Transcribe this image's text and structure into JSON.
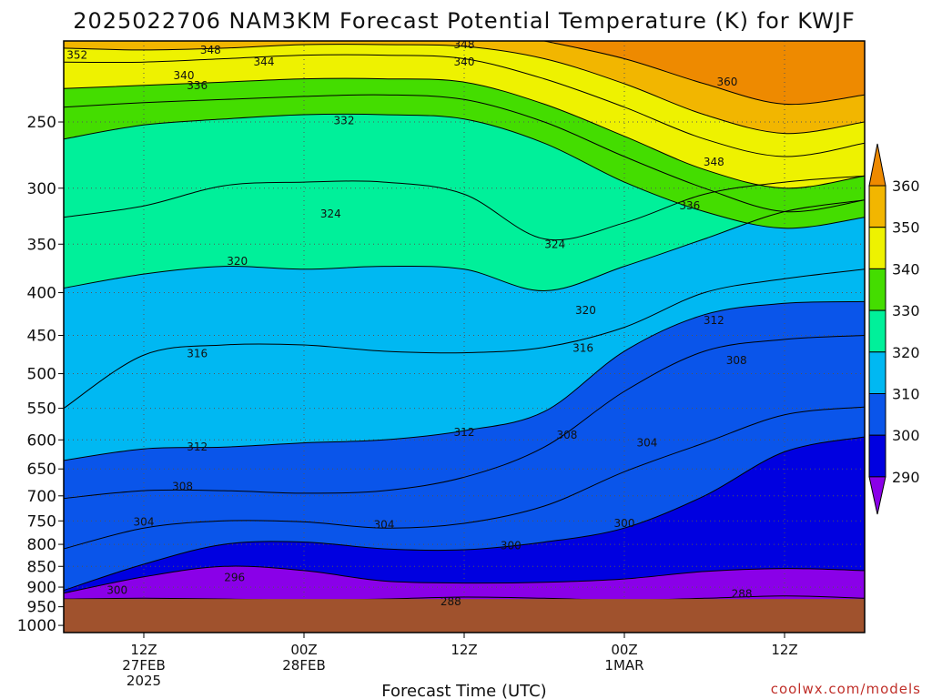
{
  "chart_data": {
    "type": "heatmap",
    "title": "2025022706 NAM3KM Forecast Potential Temperature (K) for KWJF",
    "xlabel": "Forecast Time (UTC)",
    "ylabel": "",
    "credit": "coolwx.com/models",
    "x_ticks": [
      {
        "hour": 6,
        "line1": "12Z",
        "line2": "27FEB",
        "line3": "2025"
      },
      {
        "hour": 18,
        "line1": "00Z",
        "line2": "28FEB",
        "line3": ""
      },
      {
        "hour": 30,
        "line1": "12Z",
        "line2": "",
        "line3": ""
      },
      {
        "hour": 42,
        "line1": "00Z",
        "line2": "1MAR",
        "line3": ""
      },
      {
        "hour": 54,
        "line1": "12Z",
        "line2": "",
        "line3": ""
      }
    ],
    "x_range_hours": [
      0,
      60
    ],
    "y_ticks": [
      "250",
      "300",
      "350",
      "400",
      "450",
      "500",
      "550",
      "600",
      "650",
      "700",
      "750",
      "800",
      "850",
      "900",
      "950",
      "1000"
    ],
    "y_range_hpa": [
      200,
      1020
    ],
    "y_scale": "log-pressure",
    "surface_pressure_hpa": 930,
    "colorbar": {
      "ticks": [
        "360",
        "350",
        "340",
        "330",
        "320",
        "310",
        "300",
        "290"
      ],
      "bins": [
        {
          "range": [
            360,
            370
          ],
          "color": "#ee8a00"
        },
        {
          "range": [
            350,
            360
          ],
          "color": "#f2b600"
        },
        {
          "range": [
            340,
            350
          ],
          "color": "#eef200"
        },
        {
          "range": [
            330,
            340
          ],
          "color": "#44dd00"
        },
        {
          "range": [
            320,
            330
          ],
          "color": "#00f09a"
        },
        {
          "range": [
            310,
            320
          ],
          "color": "#00b8f2"
        },
        {
          "range": [
            300,
            310
          ],
          "color": "#0a55ea"
        },
        {
          "range": [
            290,
            300
          ],
          "color": "#0000e0"
        },
        {
          "range": [
            280,
            290
          ],
          "color": "#8a00e8"
        }
      ]
    },
    "contour_interval_k": 2,
    "ground_color": "#a0522d",
    "isentropes": [
      {
        "theta": 288,
        "points": [
          [
            0,
            930
          ],
          [
            6,
            928
          ],
          [
            12,
            930
          ],
          [
            18,
            933
          ],
          [
            24,
            930
          ],
          [
            30,
            925
          ],
          [
            36,
            928
          ],
          [
            42,
            933
          ],
          [
            48,
            928
          ],
          [
            54,
            922
          ],
          [
            60,
            928
          ]
        ]
      },
      {
        "theta": 296,
        "points": [
          [
            0,
            915
          ],
          [
            6,
            875
          ],
          [
            12,
            850
          ],
          [
            18,
            860
          ],
          [
            24,
            885
          ],
          [
            30,
            890
          ],
          [
            36,
            888
          ],
          [
            42,
            880
          ],
          [
            48,
            862
          ],
          [
            54,
            855
          ],
          [
            60,
            860
          ]
        ]
      },
      {
        "theta": 300,
        "points": [
          [
            0,
            908
          ],
          [
            6,
            845
          ],
          [
            12,
            800
          ],
          [
            18,
            795
          ],
          [
            24,
            810
          ],
          [
            30,
            812
          ],
          [
            36,
            795
          ],
          [
            42,
            765
          ],
          [
            48,
            700
          ],
          [
            54,
            620
          ],
          [
            60,
            595
          ]
        ]
      },
      {
        "theta": 304,
        "points": [
          [
            0,
            810
          ],
          [
            6,
            765
          ],
          [
            12,
            750
          ],
          [
            18,
            752
          ],
          [
            24,
            765
          ],
          [
            30,
            755
          ],
          [
            36,
            720
          ],
          [
            42,
            655
          ],
          [
            48,
            605
          ],
          [
            54,
            560
          ],
          [
            60,
            548
          ]
        ]
      },
      {
        "theta": 308,
        "points": [
          [
            0,
            705
          ],
          [
            6,
            690
          ],
          [
            12,
            690
          ],
          [
            18,
            695
          ],
          [
            24,
            690
          ],
          [
            30,
            665
          ],
          [
            36,
            612
          ],
          [
            42,
            525
          ],
          [
            48,
            470
          ],
          [
            54,
            455
          ],
          [
            60,
            450
          ]
        ]
      },
      {
        "theta": 312,
        "points": [
          [
            0,
            635
          ],
          [
            6,
            615
          ],
          [
            12,
            612
          ],
          [
            18,
            605
          ],
          [
            24,
            600
          ],
          [
            30,
            585
          ],
          [
            36,
            555
          ],
          [
            42,
            470
          ],
          [
            48,
            425
          ],
          [
            54,
            412
          ],
          [
            60,
            410
          ]
        ]
      },
      {
        "theta": 316,
        "points": [
          [
            0,
            550
          ],
          [
            6,
            475
          ],
          [
            12,
            462
          ],
          [
            18,
            462
          ],
          [
            24,
            470
          ],
          [
            30,
            472
          ],
          [
            36,
            465
          ],
          [
            42,
            440
          ],
          [
            48,
            400
          ],
          [
            54,
            385
          ],
          [
            60,
            375
          ]
        ]
      },
      {
        "theta": 320,
        "points": [
          [
            0,
            395
          ],
          [
            6,
            380
          ],
          [
            12,
            372
          ],
          [
            18,
            375
          ],
          [
            24,
            372
          ],
          [
            30,
            375
          ],
          [
            36,
            398
          ],
          [
            42,
            372
          ],
          [
            48,
            345
          ],
          [
            54,
            320
          ],
          [
            60,
            310
          ]
        ]
      },
      {
        "theta": 324,
        "points": [
          [
            0,
            325
          ],
          [
            6,
            315
          ],
          [
            12,
            298
          ],
          [
            18,
            295
          ],
          [
            24,
            295
          ],
          [
            30,
            305
          ],
          [
            36,
            345
          ],
          [
            42,
            330
          ],
          [
            48,
            305
          ],
          [
            54,
            295
          ],
          [
            60,
            290
          ]
        ]
      },
      {
        "theta": 332,
        "points": [
          [
            0,
            262
          ],
          [
            6,
            252
          ],
          [
            12,
            248
          ],
          [
            18,
            245
          ],
          [
            24,
            245
          ],
          [
            30,
            248
          ],
          [
            36,
            265
          ],
          [
            42,
            295
          ],
          [
            48,
            320
          ],
          [
            54,
            335
          ],
          [
            60,
            325
          ]
        ]
      },
      {
        "theta": 336,
        "points": [
          [
            0,
            240
          ],
          [
            6,
            237
          ],
          [
            12,
            235
          ],
          [
            18,
            233
          ],
          [
            24,
            232
          ],
          [
            30,
            235
          ],
          [
            36,
            250
          ],
          [
            42,
            275
          ],
          [
            48,
            300
          ],
          [
            54,
            320
          ],
          [
            60,
            310
          ]
        ]
      },
      {
        "theta": 340,
        "points": [
          [
            0,
            228
          ],
          [
            6,
            226
          ],
          [
            12,
            224
          ],
          [
            18,
            222
          ],
          [
            24,
            222
          ],
          [
            30,
            224
          ],
          [
            36,
            238
          ],
          [
            42,
            260
          ],
          [
            48,
            285
          ],
          [
            54,
            300
          ],
          [
            60,
            290
          ]
        ]
      },
      {
        "theta": 348,
        "points": [
          [
            0,
            212
          ],
          [
            6,
            212
          ],
          [
            12,
            210
          ],
          [
            18,
            208
          ],
          [
            24,
            208
          ],
          [
            30,
            210
          ],
          [
            36,
            222
          ],
          [
            42,
            240
          ],
          [
            48,
            262
          ],
          [
            54,
            275
          ],
          [
            60,
            265
          ]
        ]
      },
      {
        "theta": 352,
        "points": [
          [
            0,
            204
          ],
          [
            6,
            205
          ],
          [
            12,
            204
          ],
          [
            18,
            202
          ],
          [
            24,
            202
          ],
          [
            30,
            203
          ],
          [
            36,
            210
          ],
          [
            42,
            225
          ],
          [
            48,
            245
          ],
          [
            54,
            258
          ],
          [
            60,
            250
          ]
        ]
      },
      {
        "theta": 360,
        "points": [
          [
            36,
            200
          ],
          [
            42,
            210
          ],
          [
            48,
            225
          ],
          [
            54,
            238
          ],
          [
            60,
            232
          ]
        ]
      }
    ],
    "contour_labels": [
      "288",
      "296",
      "300",
      "300",
      "304",
      "304",
      "304",
      "308",
      "308",
      "308",
      "312",
      "312",
      "312",
      "316",
      "316",
      "320",
      "320",
      "324",
      "324",
      "332",
      "336",
      "336",
      "340",
      "340",
      "344",
      "348",
      "348",
      "348",
      "352",
      "360",
      "288",
      "300"
    ],
    "contour_label_positions": [
      {
        "text": "288",
        "hour": 29,
        "hpa": 937
      },
      {
        "text": "296",
        "hour": 12.8,
        "hpa": 877
      },
      {
        "text": "300",
        "hour": 4,
        "hpa": 908
      },
      {
        "text": "300",
        "hour": 33.5,
        "hpa": 803
      },
      {
        "text": "300",
        "hour": 42,
        "hpa": 755
      },
      {
        "text": "304",
        "hour": 6,
        "hpa": 752
      },
      {
        "text": "304",
        "hour": 24,
        "hpa": 758
      },
      {
        "text": "304",
        "hour": 43.7,
        "hpa": 605
      },
      {
        "text": "308",
        "hour": 8.9,
        "hpa": 682
      },
      {
        "text": "308",
        "hour": 37.7,
        "hpa": 592
      },
      {
        "text": "308",
        "hour": 50.4,
        "hpa": 482
      },
      {
        "text": "312",
        "hour": 10,
        "hpa": 612
      },
      {
        "text": "312",
        "hour": 30,
        "hpa": 588
      },
      {
        "text": "312",
        "hour": 48.7,
        "hpa": 432
      },
      {
        "text": "316",
        "hour": 10,
        "hpa": 473
      },
      {
        "text": "316",
        "hour": 38.9,
        "hpa": 466
      },
      {
        "text": "320",
        "hour": 13,
        "hpa": 367
      },
      {
        "text": "320",
        "hour": 39.1,
        "hpa": 420
      },
      {
        "text": "324",
        "hour": 20,
        "hpa": 322
      },
      {
        "text": "324",
        "hour": 36.8,
        "hpa": 350
      },
      {
        "text": "332",
        "hour": 21,
        "hpa": 249
      },
      {
        "text": "336",
        "hour": 10,
        "hpa": 226
      },
      {
        "text": "336",
        "hour": 46.9,
        "hpa": 315
      },
      {
        "text": "340",
        "hour": 9,
        "hpa": 220
      },
      {
        "text": "340",
        "hour": 30,
        "hpa": 212
      },
      {
        "text": "344",
        "hour": 15,
        "hpa": 212
      },
      {
        "text": "348",
        "hour": 11,
        "hpa": 205
      },
      {
        "text": "348",
        "hour": 30,
        "hpa": 202
      },
      {
        "text": "348",
        "hour": 48.7,
        "hpa": 279
      },
      {
        "text": "352",
        "hour": 1,
        "hpa": 208
      },
      {
        "text": "360",
        "hour": 49.7,
        "hpa": 224
      },
      {
        "text": "288",
        "hour": 50.8,
        "hpa": 917
      }
    ]
  }
}
